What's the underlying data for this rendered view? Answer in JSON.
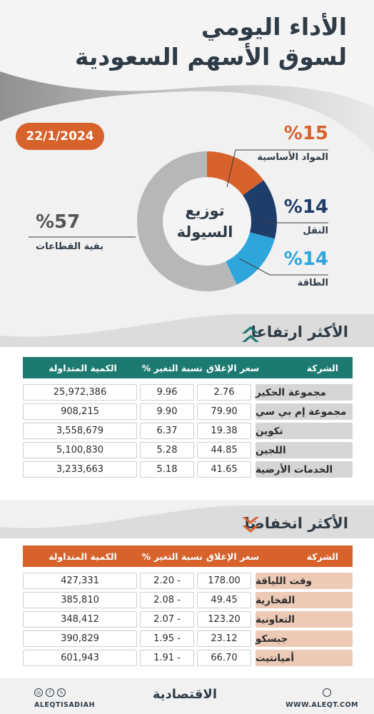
{
  "header": {
    "title_line1": "الأداء اليومي",
    "title_line2": "لسوق الأسهم السعودية",
    "date": "22/1/2024"
  },
  "colors": {
    "orange": "#d7622c",
    "navy": "#1f3d69",
    "sky": "#2ea6dc",
    "gray": "#b6b7b9",
    "teal": "#1c7a70",
    "salmon": "#eccab5",
    "label_bg": "#d3d6d5"
  },
  "liquidity": {
    "center_line1": "توزيع",
    "center_line2": "السيولة",
    "segments": [
      {
        "pct": "%15",
        "label": "المواد الأساسية",
        "value": 15,
        "color": "#d7622c"
      },
      {
        "pct": "%14",
        "label": "النقل",
        "value": 14,
        "color": "#1f3d69"
      },
      {
        "pct": "%14",
        "label": "الطاقة",
        "value": 14,
        "color": "#2ea6dc"
      },
      {
        "pct": "%57",
        "label": "بقية القطاعات",
        "value": 57,
        "color": "#b6b7b9"
      }
    ]
  },
  "gainers": {
    "title": "الأكثر ارتفاعا",
    "icon": "double-chevron-up-icon",
    "headers": {
      "company": "الشركة",
      "close": "سعر الإغلاق",
      "change": "نسبة التغير %",
      "volume": "الكمية المتداولة"
    },
    "rows": [
      {
        "company": "مجموعة الحكير",
        "close": "2.76",
        "change": "9.96",
        "volume": "25,972,386"
      },
      {
        "company": "مجموعة إم بي سي",
        "close": "79.90",
        "change": "9.90",
        "volume": "908,215"
      },
      {
        "company": "تكوين",
        "close": "19.38",
        "change": "6.37",
        "volume": "3,558,679"
      },
      {
        "company": "اللجين",
        "close": "44.85",
        "change": "5.28",
        "volume": "5,100,830"
      },
      {
        "company": "الخدمات الأرضية",
        "close": "41.65",
        "change": "5.18",
        "volume": "3,233,663"
      }
    ]
  },
  "losers": {
    "title": "الأكثر انخفاضا",
    "icon": "double-chevron-down-icon",
    "headers": {
      "company": "الشركة",
      "close": "سعر الإغلاق",
      "change": "نسبة التغير %",
      "volume": "الكمية المتداولة"
    },
    "rows": [
      {
        "company": "وقت اللياقة",
        "close": "178.00",
        "change": "2.20 -",
        "volume": "427,331"
      },
      {
        "company": "الفخارية",
        "close": "49.45",
        "change": "2.08 -",
        "volume": "385,810"
      },
      {
        "company": "التعاونية",
        "close": "123.20",
        "change": "2.07 -",
        "volume": "348,412"
      },
      {
        "company": "جبسكو",
        "close": "23.12",
        "change": "1.95 -",
        "volume": "390,829"
      },
      {
        "company": "أميانتيت",
        "close": "66.70",
        "change": "1.91 -",
        "volume": "601,943"
      }
    ]
  },
  "footer": {
    "handle": "ALEQTISADIAH",
    "logo": "الاقتصادية",
    "url": "WWW.ALEQT.COM"
  }
}
